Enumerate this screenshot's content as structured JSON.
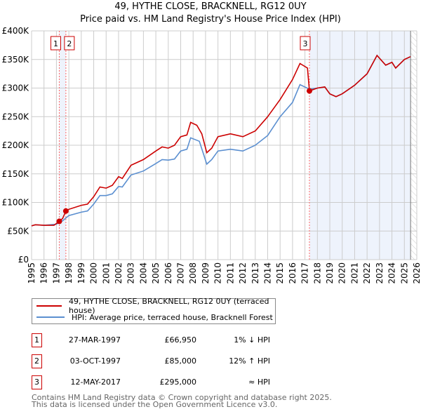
{
  "chart_data": {
    "type": "line",
    "title": "49, HYTHE CLOSE, BRACKNELL, RG12 0UY",
    "subtitle": "Price paid vs. HM Land Registry's House Price Index (HPI)",
    "xlim": [
      1995,
      2026
    ],
    "ylim": [
      0,
      400000
    ],
    "grid": true,
    "y_ticks": [
      0,
      50000,
      100000,
      150000,
      200000,
      250000,
      300000,
      350000,
      400000
    ],
    "y_tick_labels": [
      "£0",
      "£50K",
      "£100K",
      "£150K",
      "£200K",
      "£250K",
      "£300K",
      "£350K",
      "£400K"
    ],
    "x_ticks": [
      "1995",
      "1996",
      "1997",
      "1998",
      "1999",
      "2000",
      "2001",
      "2002",
      "2003",
      "2004",
      "2005",
      "2006",
      "2007",
      "2008",
      "2009",
      "2010",
      "2011",
      "2012",
      "2013",
      "2014",
      "2015",
      "2016",
      "2017",
      "2018",
      "2019",
      "2020",
      "2021",
      "2022",
      "2023",
      "2024",
      "2025",
      "2026"
    ],
    "data_end": 2025.5,
    "series": [
      {
        "name": "49, HYTHE CLOSE, BRACKNELL, RG12 0UY (terraced house)",
        "color": "#cc0000",
        "x": [
          1995,
          1995.3,
          1996,
          1996.8,
          1997.23,
          1997.5,
          1997.76,
          1998,
          1999,
          1999.5,
          2000,
          2000.5,
          2001,
          2001.5,
          2002,
          2002.3,
          2003,
          2004,
          2005,
          2005.5,
          2006,
          2006.5,
          2007,
          2007.5,
          2007.8,
          2008.3,
          2008.7,
          2009.1,
          2009.5,
          2010,
          2011,
          2012,
          2013,
          2014,
          2015,
          2016,
          2016.6,
          2017.2,
          2017.36,
          2018,
          2018.6,
          2019,
          2019.5,
          2020,
          2021,
          2022,
          2022.8,
          2023.5,
          2024,
          2024.3,
          2025,
          2025.5
        ],
        "y": [
          59000,
          61000,
          60000,
          60000,
          66950,
          72000,
          85000,
          88000,
          95000,
          97000,
          110000,
          127000,
          125000,
          130000,
          145000,
          142000,
          165000,
          175000,
          190000,
          197000,
          195000,
          200000,
          215000,
          218000,
          240000,
          235000,
          220000,
          187000,
          195000,
          215000,
          220000,
          215000,
          225000,
          250000,
          280000,
          315000,
          343000,
          335000,
          295000,
          300000,
          302000,
          290000,
          285000,
          290000,
          305000,
          325000,
          357000,
          340000,
          345000,
          335000,
          350000,
          355000
        ]
      },
      {
        "name": "HPI: Average price, terraced house, Bracknell Forest",
        "color": "#5b8fd0",
        "x": [
          1995,
          1995.3,
          1996,
          1997,
          1997.5,
          1998,
          1999,
          1999.5,
          2000,
          2000.5,
          2001,
          2001.5,
          2002,
          2002.3,
          2003,
          2004,
          2005,
          2005.5,
          2006,
          2006.5,
          2007,
          2007.5,
          2007.8,
          2008.5,
          2009.1,
          2009.5,
          2010,
          2011,
          2012,
          2013,
          2014,
          2015,
          2016,
          2016.6,
          2017.36,
          2018,
          2018.6,
          2019,
          2019.5,
          2020,
          2021,
          2022,
          2022.8,
          2023.5,
          2024,
          2024.3,
          2025,
          2025.5
        ],
        "y": [
          59000,
          61000,
          60000,
          62000,
          68000,
          77000,
          83000,
          85000,
          97000,
          112000,
          112000,
          115000,
          128000,
          127000,
          148000,
          155000,
          168000,
          175000,
          174000,
          176000,
          190000,
          193000,
          213000,
          207000,
          167000,
          175000,
          190000,
          193000,
          190000,
          200000,
          217000,
          250000,
          275000,
          306000,
          298000,
          300000,
          302000,
          290000,
          285000,
          290000,
          305000,
          325000,
          357000,
          340000,
          345000,
          335000,
          350000,
          355000
        ]
      }
    ],
    "sales": [
      {
        "label": "1",
        "x": 1997.23,
        "y": 66950
      },
      {
        "label": "2",
        "x": 1997.76,
        "y": 85000
      },
      {
        "label": "3",
        "x": 2017.36,
        "y": 295000
      }
    ]
  },
  "legend": {
    "property": "49, HYTHE CLOSE, BRACKNELL, RG12 0UY (terraced house)",
    "hpi": "HPI: Average price, terraced house, Bracknell Forest"
  },
  "transactions": [
    {
      "num": "1",
      "date": "27-MAR-1997",
      "price": "£66,950",
      "hpi": "1% ↓ HPI"
    },
    {
      "num": "2",
      "date": "03-OCT-1997",
      "price": "£85,000",
      "hpi": "12% ↑ HPI"
    },
    {
      "num": "3",
      "date": "12-MAY-2017",
      "price": "£295,000",
      "hpi": "≈ HPI"
    }
  ],
  "footer": {
    "line1": "Contains HM Land Registry data © Crown copyright and database right 2025.",
    "line2": "This data is licensed under the Open Government Licence v3.0."
  },
  "colors": {
    "property": "#cc0000",
    "hpi": "#5b8fd0",
    "shade": "#eef3fc",
    "grid": "#cccccc"
  }
}
